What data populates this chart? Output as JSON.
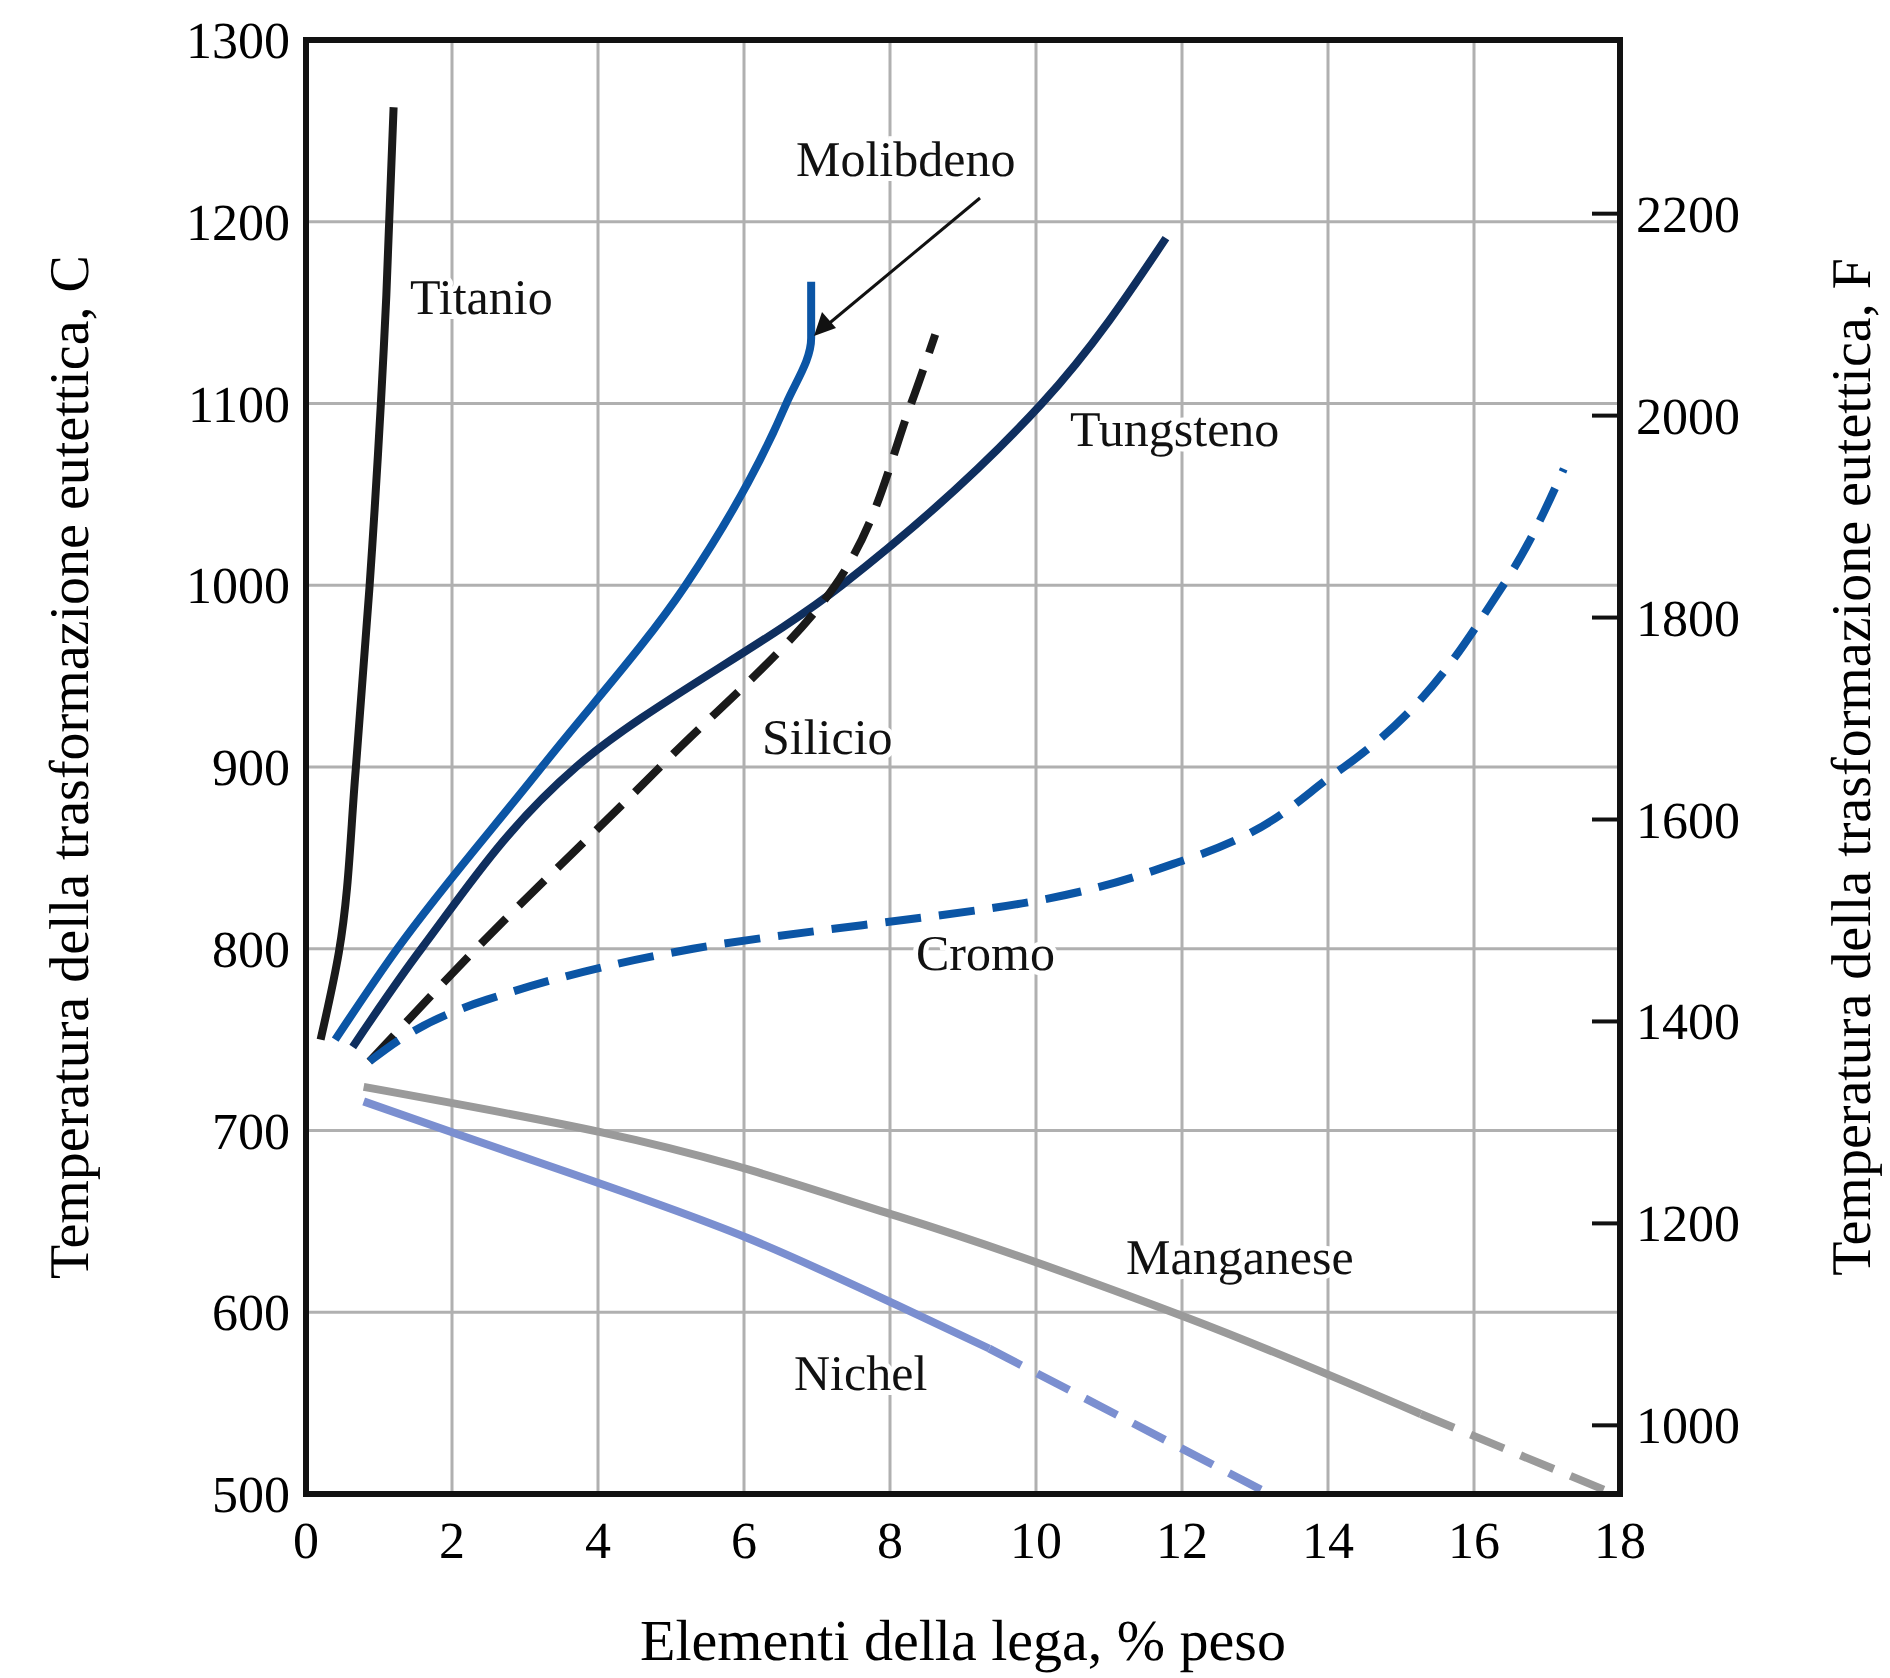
{
  "chart_data": {
    "type": "line",
    "xlabel": "Elementi della lega, % peso",
    "ylabel": "Temperatura della trasformazione eutettica, C",
    "y2label": "Temperatura della trasformazione eutettica, F",
    "xlim": [
      0,
      18
    ],
    "xticks": [
      0,
      2,
      4,
      6,
      8,
      10,
      12,
      14,
      16,
      18
    ],
    "ylim": [
      500,
      1300
    ],
    "yticks": [
      500,
      600,
      700,
      800,
      900,
      1000,
      1100,
      1200,
      1300
    ],
    "y2lim": [
      932,
      2372
    ],
    "y2ticks": [
      1000,
      1200,
      1400,
      1600,
      1800,
      2000,
      2200
    ],
    "grid": true,
    "series": [
      {
        "name": "Titanio",
        "color": "#1a1a1a",
        "line_style": "solid",
        "x": [
          0.2,
          0.45,
          0.68,
          0.87,
          1.1,
          1.2
        ],
        "values": [
          750,
          798,
          898,
          999,
          1159,
          1263
        ]
      },
      {
        "name": "Molibdeno",
        "color": "#0b55a5",
        "line_style": "solid",
        "x": [
          0.4,
          1.25,
          3.23,
          5.2,
          6.58,
          6.92,
          6.92
        ],
        "values": [
          750,
          800,
          900,
          1000,
          1100,
          1136,
          1167
        ]
      },
      {
        "name": "Tungsteno",
        "color": "#0f2f5f",
        "line_style": "solid",
        "x": [
          0.64,
          1.58,
          3.7,
          7.34,
          10.08,
          11.78
        ],
        "values": [
          746,
          800,
          900,
          1000,
          1100,
          1191
        ]
      },
      {
        "name": "Silicio",
        "color": "#1a1a1a",
        "line_style": "dashed",
        "x": [
          0.87,
          2.33,
          4.85,
          7.25,
          8.29,
          8.62
        ],
        "values": [
          738,
          800,
          900,
          1000,
          1100,
          1138
        ]
      },
      {
        "name": "Cromo",
        "color": "#0b55a5",
        "line_style": "dashed",
        "x": [
          0.87,
          2.48,
          5.3,
          10.09,
          12.12,
          14.15,
          16.4,
          17.23
        ],
        "values": [
          738,
          772,
          800,
          827,
          850,
          898,
          1000,
          1064
        ]
      },
      {
        "name": "Manganese",
        "color": "#9a9a9a",
        "line_style": "solid",
        "x": [
          0.79,
          4.05,
          8.09,
          12.07,
          15.27
        ],
        "values": [
          724,
          699,
          653,
          597,
          544
        ]
      },
      {
        "color": "#9a9a9a",
        "line_style": "dashed",
        "x": [
          15.27,
          17.8
        ],
        "values": [
          544,
          502
        ]
      },
      {
        "name": "Nichel",
        "color": "#7b8fd0",
        "line_style": "solid",
        "x": [
          0.79,
          2.0,
          6.04,
          8.09,
          9.36
        ],
        "values": [
          716,
          699,
          641,
          604,
          580
        ]
      },
      {
        "color": "#7b8fd0",
        "line_style": "dashed",
        "x": [
          9.36,
          13.1
        ],
        "values": [
          580,
          502
        ]
      }
    ]
  }
}
